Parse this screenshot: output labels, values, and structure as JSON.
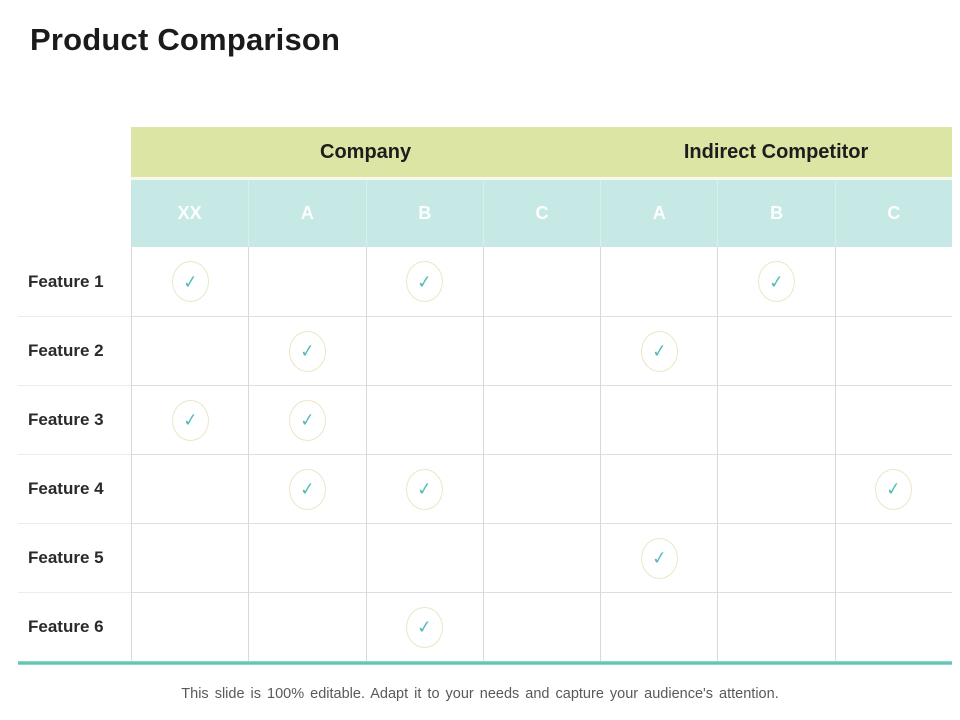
{
  "title": "Product Comparison",
  "caption": "This slide is 100% editable. Adapt it to your needs and capture your audience's attention.",
  "icons": {
    "check": "✓"
  },
  "colors": {
    "header_group_bg": "#dde5a5",
    "header_col_bg": "#c6e9e6",
    "header_col_text": "#fdfefe",
    "check": "#54bdb6",
    "check_circle_border": "#e8e8c6",
    "accent_line": "#5ec6b3",
    "grid_line": "#d9d9d9"
  },
  "table": {
    "groups": [
      {
        "label": "Company",
        "span": 4
      },
      {
        "label": "Indirect Competitor",
        "span": 3
      }
    ],
    "columns": [
      "XX",
      "A",
      "B",
      "C",
      "A",
      "B",
      "C"
    ],
    "rows": [
      {
        "label": "Feature 1",
        "checks": [
          true,
          false,
          true,
          false,
          false,
          true,
          false
        ]
      },
      {
        "label": "Feature 2",
        "checks": [
          false,
          true,
          false,
          false,
          true,
          false,
          false
        ]
      },
      {
        "label": "Feature 3",
        "checks": [
          true,
          true,
          false,
          false,
          false,
          false,
          false
        ]
      },
      {
        "label": "Feature 4",
        "checks": [
          false,
          true,
          true,
          false,
          false,
          false,
          true
        ]
      },
      {
        "label": "Feature 5",
        "checks": [
          false,
          false,
          false,
          false,
          true,
          false,
          false
        ]
      },
      {
        "label": "Feature 6",
        "checks": [
          false,
          false,
          true,
          false,
          false,
          false,
          false
        ]
      }
    ]
  }
}
